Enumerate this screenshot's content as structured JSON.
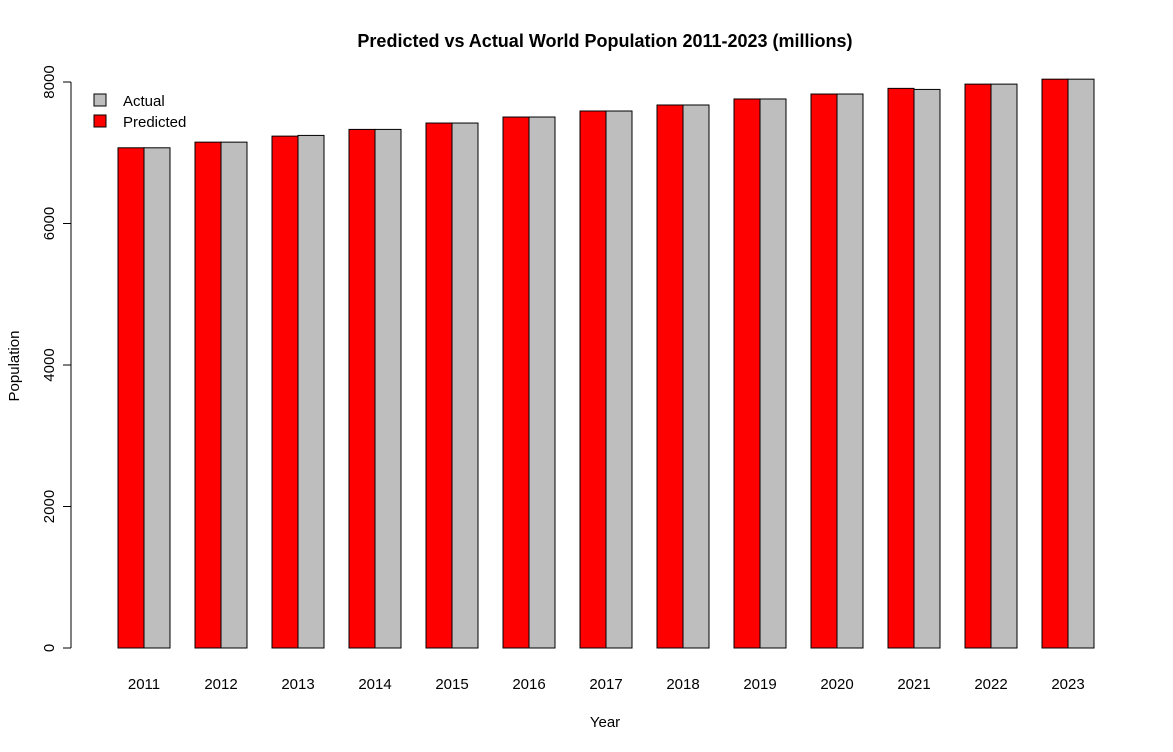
{
  "chart_data": {
    "type": "bar",
    "title": "Predicted vs Actual World Population 2011-2023 (millions)",
    "xlabel": "Year",
    "ylabel": "Population",
    "categories": [
      "2011",
      "2012",
      "2013",
      "2014",
      "2015",
      "2016",
      "2017",
      "2018",
      "2019",
      "2020",
      "2021",
      "2022",
      "2023"
    ],
    "series": [
      {
        "name": "Predicted",
        "color": "#FF0000",
        "values": [
          7070,
          7150,
          7235,
          7330,
          7420,
          7505,
          7590,
          7675,
          7760,
          7830,
          7910,
          7970,
          8040
        ]
      },
      {
        "name": "Actual",
        "color": "#BEBEBE",
        "values": [
          7070,
          7150,
          7245,
          7330,
          7420,
          7505,
          7590,
          7675,
          7760,
          7830,
          7895,
          7970,
          8040
        ]
      }
    ],
    "ylim": [
      0,
      8000
    ],
    "yticks": [
      "0",
      "2000",
      "4000",
      "6000",
      "8000"
    ],
    "grid": false,
    "legend": {
      "position": "top-left",
      "entries": [
        {
          "label": "Actual",
          "color": "#BEBEBE"
        },
        {
          "label": "Predicted",
          "color": "#FF0000"
        }
      ]
    }
  }
}
